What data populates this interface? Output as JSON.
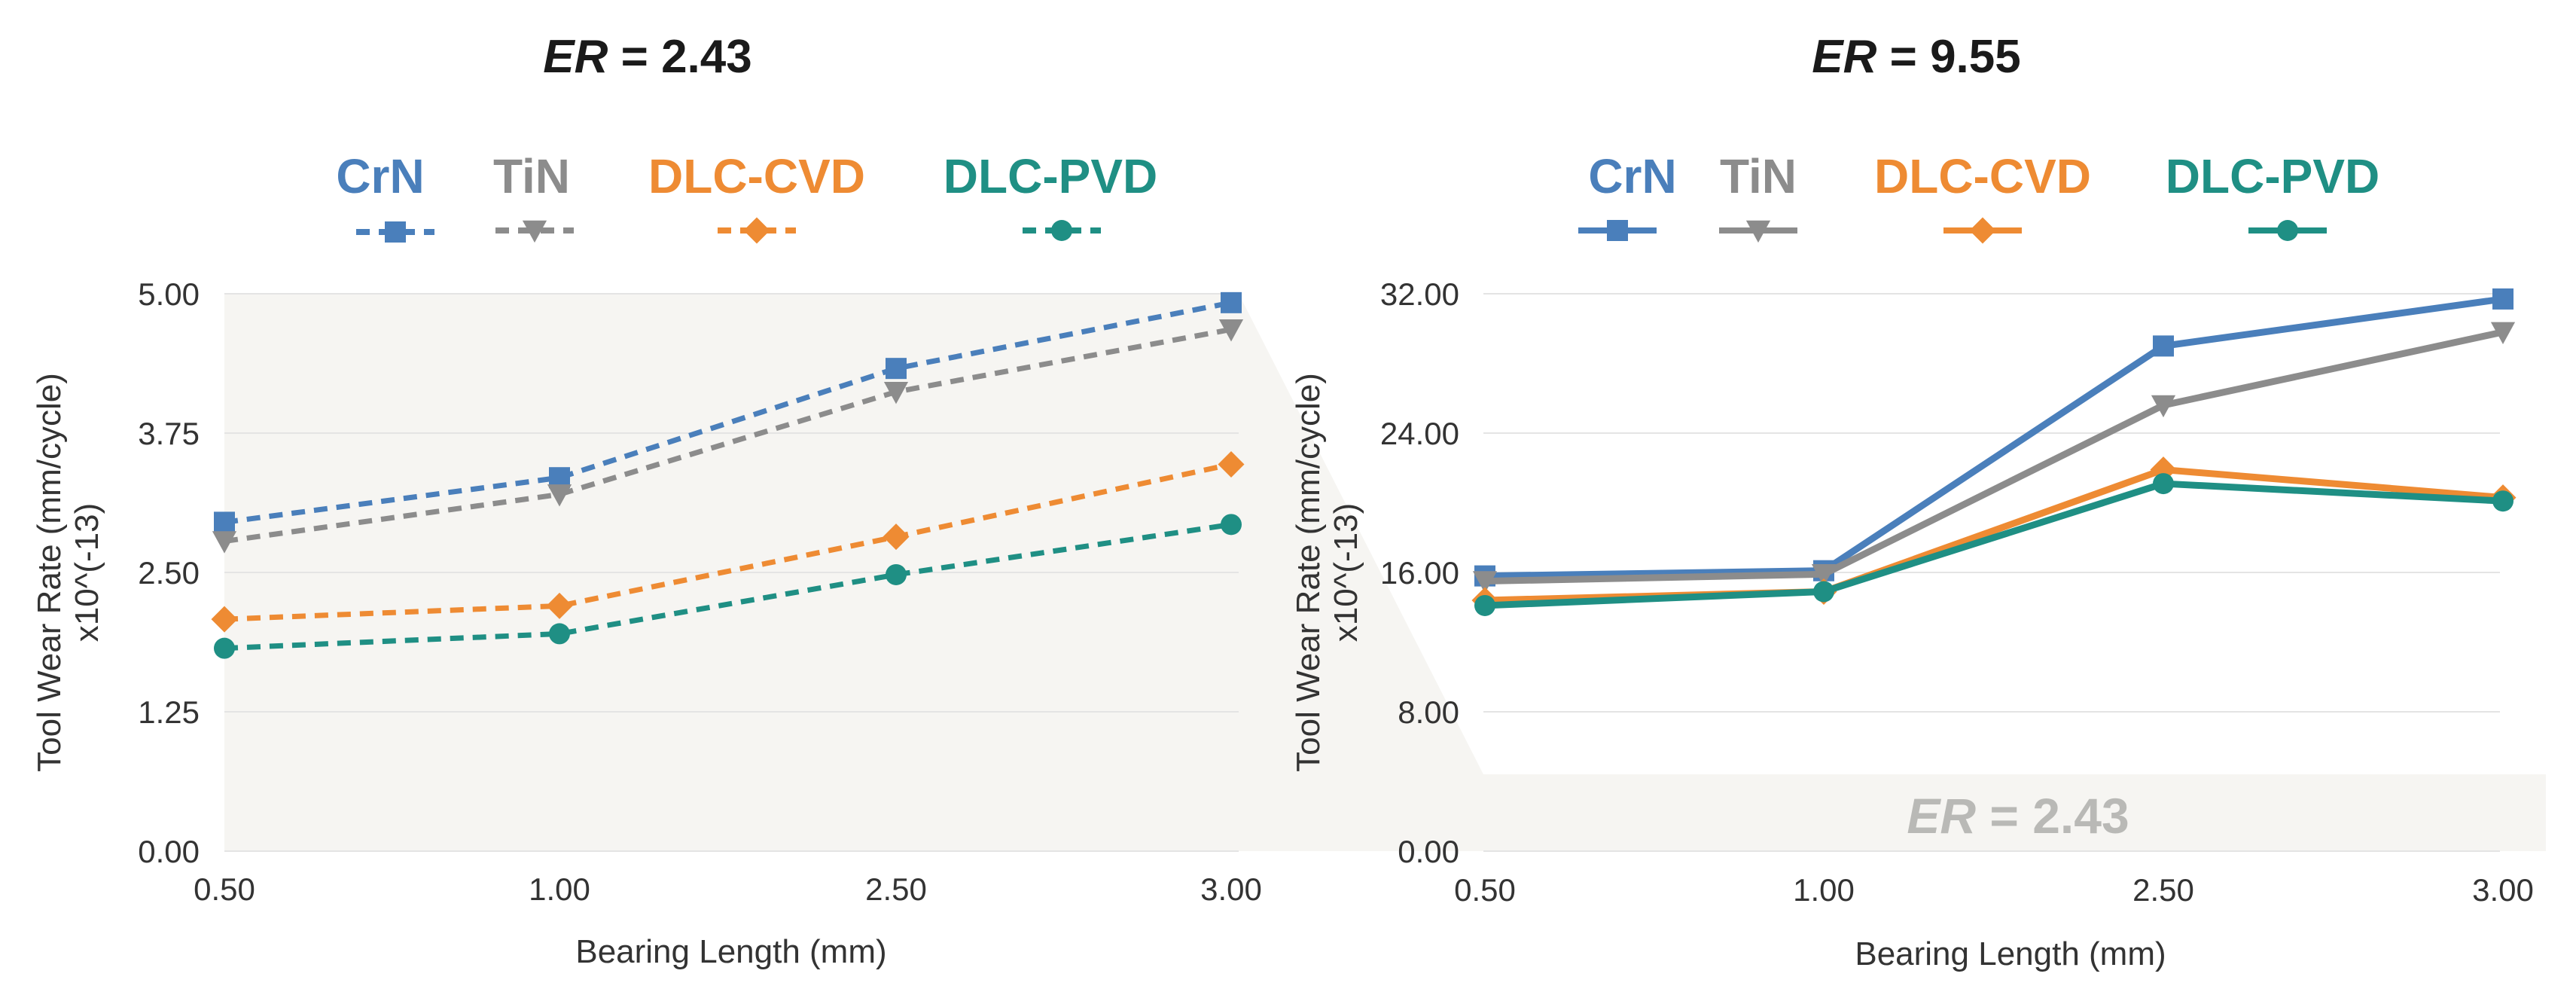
{
  "colors": {
    "CrN": "#4a7fbb",
    "TiN": "#8c8c8c",
    "DLC-CVD": "#ee8b33",
    "DLC-PVD": "#1f8f84",
    "grid": "#e4e4e4",
    "panel": "#f6f5f2"
  },
  "chart_data": [
    {
      "type": "line",
      "title": {
        "prefix": "ER",
        "suffix": " = 2.43"
      },
      "line_style": "dashed",
      "xlabel": "Bearing Length (mm)",
      "ylabel": [
        "Tool Wear Rate (mm/cycle)",
        "x10^(-13)"
      ],
      "categories": [
        "0.50",
        "1.00",
        "2.50",
        "3.00"
      ],
      "yticks": [
        "0.00",
        "1.25",
        "2.50",
        "3.75",
        "5.00"
      ],
      "ylim": [
        0,
        5
      ],
      "series": [
        {
          "name": "CrN",
          "marker": "square",
          "values": [
            2.95,
            3.35,
            4.33,
            4.92
          ]
        },
        {
          "name": "TiN",
          "marker": "triangle-down",
          "values": [
            2.78,
            3.2,
            4.12,
            4.68
          ]
        },
        {
          "name": "DLC-CVD",
          "marker": "diamond",
          "values": [
            2.08,
            2.2,
            2.82,
            3.47
          ]
        },
        {
          "name": "DLC-PVD",
          "marker": "circle",
          "values": [
            1.82,
            1.95,
            2.48,
            2.93
          ]
        }
      ]
    },
    {
      "type": "line",
      "title": {
        "prefix": "ER",
        "suffix": " = 9.55"
      },
      "line_style": "solid",
      "xlabel": "Bearing Length (mm)",
      "ylabel": [
        "Tool Wear Rate (mm/cycle)",
        "x10^(-13)"
      ],
      "categories": [
        "0.50",
        "1.00",
        "2.50",
        "3.00"
      ],
      "yticks": [
        "0.00",
        "8.00",
        "16.00",
        "24.00",
        "32.00"
      ],
      "ylim": [
        0,
        32
      ],
      "overlay_label": {
        "prefix": "ER",
        "suffix": " = 2.43"
      },
      "series": [
        {
          "name": "CrN",
          "marker": "square",
          "values": [
            15.8,
            16.1,
            29.0,
            31.7
          ]
        },
        {
          "name": "TiN",
          "marker": "triangle-down",
          "values": [
            15.5,
            15.9,
            25.6,
            29.8
          ]
        },
        {
          "name": "DLC-CVD",
          "marker": "diamond",
          "values": [
            14.4,
            14.9,
            21.9,
            20.3
          ]
        },
        {
          "name": "DLC-PVD",
          "marker": "circle",
          "values": [
            14.1,
            14.9,
            21.1,
            20.1
          ]
        }
      ]
    }
  ]
}
